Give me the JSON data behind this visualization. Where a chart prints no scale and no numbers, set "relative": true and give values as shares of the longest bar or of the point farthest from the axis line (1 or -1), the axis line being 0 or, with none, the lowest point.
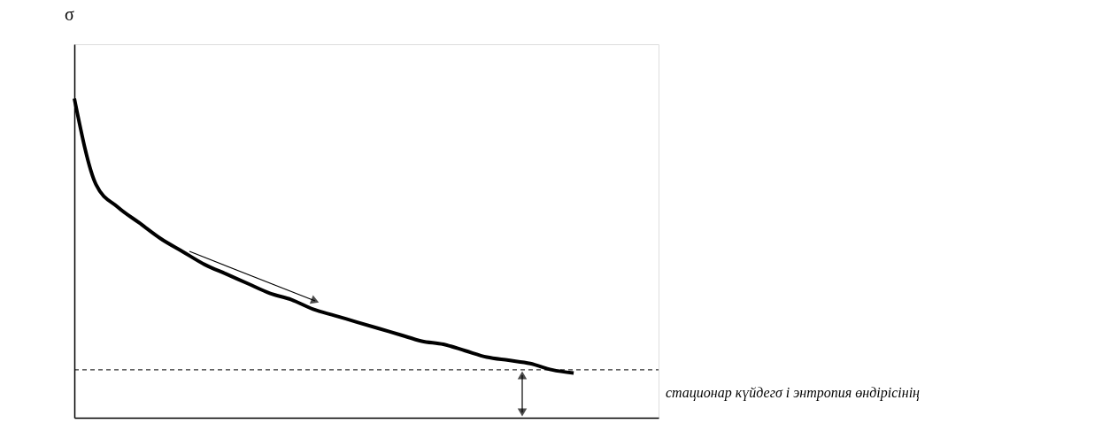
{
  "chart_data": {
    "type": "line",
    "relative": true,
    "ylabel": "σ",
    "color": "#000000",
    "line_style": "solid",
    "marker": "none",
    "grid": false,
    "categories": [
      null,
      null,
      null,
      null,
      null,
      null,
      null,
      null,
      null,
      null,
      null,
      null,
      null,
      null,
      null,
      null,
      null,
      null,
      null,
      null,
      null,
      null,
      null,
      null
    ],
    "values": [
      1.0,
      0.73,
      0.66,
      0.61,
      0.56,
      0.52,
      0.48,
      0.45,
      0.42,
      0.39,
      0.37,
      0.34,
      0.32,
      0.3,
      0.28,
      0.26,
      0.24,
      0.23,
      0.21,
      0.19,
      0.18,
      0.17,
      0.15,
      0.14
    ],
    "ref_lines": [
      {
        "axis": "y",
        "value": 0.15,
        "line_style": "dashed"
      }
    ],
    "annotations": [
      "стационар күйдегσ і энтропия өндірісінің"
    ]
  }
}
